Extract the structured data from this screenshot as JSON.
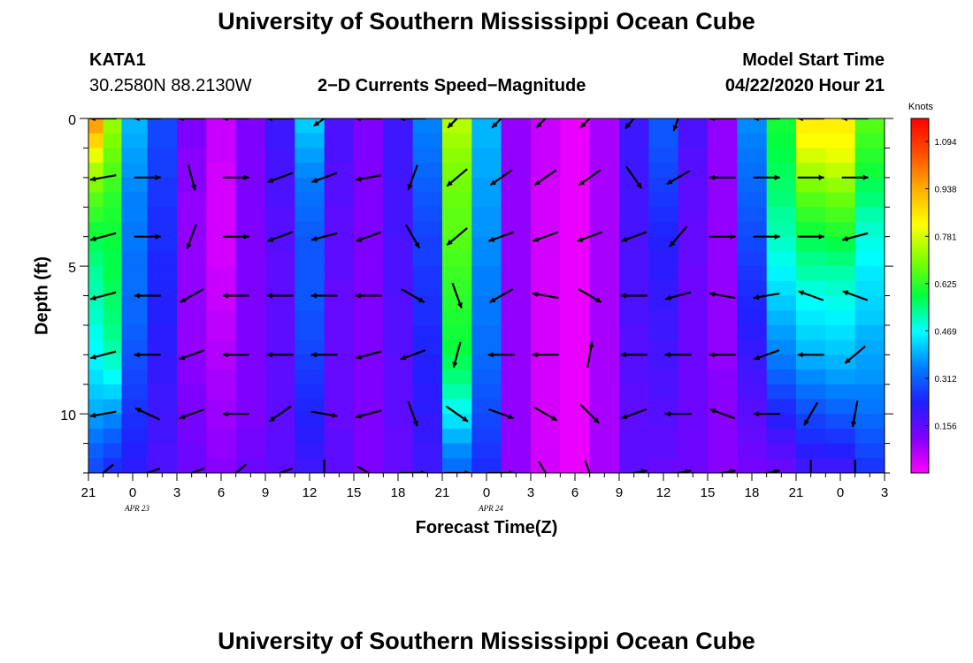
{
  "header": {
    "title": "University of Southern Mississippi Ocean Cube",
    "station": "KATA1",
    "coords": "30.2580N 88.2130W",
    "subtitle": "2−D Currents Speed−Magnitude",
    "model_label": "Model Start Time",
    "model_time": "04/22/2020 Hour 21"
  },
  "footer": {
    "title": "University of Southern Mississippi Ocean Cube"
  },
  "chart_data": {
    "type": "heatmap",
    "xlabel": "Forecast Time(Z)",
    "ylabel": "Depth (ft)",
    "x_tick_labels": [
      "21",
      "0",
      "3",
      "6",
      "9",
      "12",
      "15",
      "18",
      "21",
      "0",
      "3",
      "6",
      "9",
      "12",
      "15",
      "18",
      "21",
      "0",
      "3"
    ],
    "date_labels": [
      {
        "label": "APR  23",
        "at_tick": 1
      },
      {
        "label": "APR  24",
        "at_tick": 9
      }
    ],
    "x_range_hours": [
      0,
      54
    ],
    "y_tick_labels": [
      "0",
      "5",
      "10"
    ],
    "y_ticks": [
      0,
      5,
      10
    ],
    "ylim": [
      0,
      12
    ],
    "y_inverted": true,
    "colorbar": {
      "unit": "Knots",
      "ticks": [
        "1.094",
        "0.938",
        "0.781",
        "0.625",
        "0.469",
        "0.312",
        "0.156"
      ],
      "tick_values": [
        1.094,
        0.938,
        0.781,
        0.625,
        0.469,
        0.312,
        0.156
      ],
      "range": [
        0,
        1.17
      ],
      "colors": [
        "#ff00ff",
        "#8000ff",
        "#2020ff",
        "#0080ff",
        "#00ffff",
        "#00ff40",
        "#80ff00",
        "#ffff00",
        "#ffb000",
        "#ff5000",
        "#ff0000"
      ]
    },
    "depth_rows": [
      0.25,
      0.75,
      1.25,
      1.75,
      2.25,
      2.75,
      3.25,
      3.75,
      4.25,
      4.75,
      5.25,
      5.75,
      6.25,
      6.75,
      7.25,
      7.75,
      8.25,
      8.75,
      9.25,
      9.75,
      10.25,
      10.75,
      11.25,
      11.75
    ],
    "time_columns": [
      0.5,
      1.5,
      3,
      5,
      7,
      9,
      11,
      13,
      15,
      17,
      19,
      21,
      23,
      25,
      27,
      29,
      31,
      33,
      35,
      37,
      39,
      41,
      43,
      45,
      47,
      49,
      51,
      53
    ],
    "speed_profiles": [
      [
        0.95,
        0.88,
        0.8,
        0.74,
        0.7,
        0.66,
        0.63,
        0.6,
        0.57,
        0.55,
        0.53,
        0.52,
        0.51,
        0.5,
        0.48,
        0.47,
        0.46,
        0.44,
        0.42,
        0.4,
        0.37,
        0.34,
        0.31,
        0.29
      ],
      [
        0.72,
        0.7,
        0.68,
        0.66,
        0.64,
        0.62,
        0.61,
        0.6,
        0.59,
        0.58,
        0.58,
        0.57,
        0.56,
        0.55,
        0.54,
        0.52,
        0.5,
        0.47,
        0.43,
        0.39,
        0.35,
        0.31,
        0.28,
        0.25
      ],
      [
        0.4,
        0.39,
        0.38,
        0.37,
        0.36,
        0.35,
        0.35,
        0.34,
        0.34,
        0.33,
        0.33,
        0.33,
        0.32,
        0.32,
        0.31,
        0.3,
        0.29,
        0.28,
        0.27,
        0.26,
        0.25,
        0.24,
        0.23,
        0.22
      ],
      [
        0.28,
        0.28,
        0.27,
        0.27,
        0.26,
        0.26,
        0.25,
        0.25,
        0.25,
        0.24,
        0.24,
        0.24,
        0.23,
        0.23,
        0.22,
        0.22,
        0.21,
        0.21,
        0.2,
        0.2,
        0.19,
        0.19,
        0.18,
        0.18
      ],
      [
        0.12,
        0.12,
        0.11,
        0.11,
        0.11,
        0.1,
        0.1,
        0.1,
        0.1,
        0.1,
        0.1,
        0.1,
        0.1,
        0.1,
        0.1,
        0.1,
        0.11,
        0.11,
        0.12,
        0.12,
        0.13,
        0.13,
        0.14,
        0.14
      ],
      [
        0.05,
        0.05,
        0.05,
        0.04,
        0.04,
        0.04,
        0.04,
        0.04,
        0.04,
        0.04,
        0.05,
        0.05,
        0.05,
        0.06,
        0.06,
        0.07,
        0.07,
        0.08,
        0.08,
        0.09,
        0.09,
        0.1,
        0.1,
        0.11
      ],
      [
        0.12,
        0.12,
        0.12,
        0.12,
        0.12,
        0.12,
        0.12,
        0.12,
        0.12,
        0.12,
        0.12,
        0.12,
        0.12,
        0.12,
        0.12,
        0.12,
        0.12,
        0.12,
        0.12,
        0.12,
        0.12,
        0.13,
        0.13,
        0.14
      ],
      [
        0.2,
        0.2,
        0.19,
        0.19,
        0.18,
        0.18,
        0.17,
        0.17,
        0.17,
        0.16,
        0.16,
        0.16,
        0.16,
        0.16,
        0.16,
        0.16,
        0.16,
        0.16,
        0.16,
        0.16,
        0.16,
        0.16,
        0.16,
        0.16
      ],
      [
        0.42,
        0.4,
        0.38,
        0.36,
        0.34,
        0.33,
        0.32,
        0.31,
        0.3,
        0.3,
        0.3,
        0.3,
        0.3,
        0.29,
        0.29,
        0.28,
        0.27,
        0.26,
        0.25,
        0.24,
        0.23,
        0.22,
        0.21,
        0.2
      ],
      [
        0.18,
        0.18,
        0.18,
        0.17,
        0.17,
        0.17,
        0.16,
        0.16,
        0.16,
        0.16,
        0.16,
        0.15,
        0.15,
        0.15,
        0.15,
        0.15,
        0.15,
        0.15,
        0.15,
        0.15,
        0.15,
        0.16,
        0.16,
        0.16
      ],
      [
        0.12,
        0.12,
        0.12,
        0.12,
        0.12,
        0.12,
        0.12,
        0.12,
        0.12,
        0.12,
        0.12,
        0.12,
        0.12,
        0.12,
        0.12,
        0.12,
        0.12,
        0.12,
        0.12,
        0.12,
        0.12,
        0.12,
        0.12,
        0.12
      ],
      [
        0.2,
        0.2,
        0.2,
        0.2,
        0.19,
        0.19,
        0.19,
        0.19,
        0.18,
        0.18,
        0.18,
        0.18,
        0.17,
        0.17,
        0.17,
        0.17,
        0.16,
        0.16,
        0.16,
        0.16,
        0.16,
        0.15,
        0.15,
        0.15
      ],
      [
        0.35,
        0.34,
        0.33,
        0.32,
        0.31,
        0.3,
        0.29,
        0.28,
        0.27,
        0.27,
        0.26,
        0.26,
        0.25,
        0.25,
        0.24,
        0.24,
        0.23,
        0.23,
        0.22,
        0.22,
        0.21,
        0.21,
        0.2,
        0.2
      ],
      [
        0.75,
        0.73,
        0.71,
        0.7,
        0.69,
        0.68,
        0.67,
        0.67,
        0.66,
        0.65,
        0.64,
        0.63,
        0.62,
        0.61,
        0.6,
        0.59,
        0.57,
        0.55,
        0.52,
        0.48,
        0.44,
        0.4,
        0.36,
        0.33
      ],
      [
        0.4,
        0.4,
        0.39,
        0.39,
        0.38,
        0.38,
        0.37,
        0.37,
        0.36,
        0.36,
        0.35,
        0.35,
        0.34,
        0.34,
        0.33,
        0.33,
        0.32,
        0.31,
        0.3,
        0.29,
        0.28,
        0.27,
        0.26,
        0.25
      ],
      [
        0.1,
        0.1,
        0.1,
        0.1,
        0.1,
        0.1,
        0.1,
        0.1,
        0.1,
        0.1,
        0.1,
        0.1,
        0.1,
        0.1,
        0.1,
        0.1,
        0.1,
        0.1,
        0.1,
        0.1,
        0.1,
        0.1,
        0.1,
        0.1
      ],
      [
        0.05,
        0.05,
        0.05,
        0.05,
        0.04,
        0.04,
        0.04,
        0.04,
        0.04,
        0.04,
        0.04,
        0.04,
        0.04,
        0.04,
        0.04,
        0.04,
        0.04,
        0.04,
        0.04,
        0.04,
        0.04,
        0.04,
        0.04,
        0.04
      ],
      [
        0.02,
        0.02,
        0.02,
        0.02,
        0.02,
        0.02,
        0.02,
        0.02,
        0.02,
        0.02,
        0.02,
        0.02,
        0.02,
        0.02,
        0.02,
        0.02,
        0.02,
        0.02,
        0.02,
        0.02,
        0.02,
        0.02,
        0.02,
        0.02
      ],
      [
        0.08,
        0.08,
        0.08,
        0.08,
        0.08,
        0.08,
        0.08,
        0.08,
        0.08,
        0.08,
        0.08,
        0.08,
        0.08,
        0.08,
        0.08,
        0.08,
        0.08,
        0.08,
        0.08,
        0.08,
        0.08,
        0.08,
        0.08,
        0.08
      ],
      [
        0.2,
        0.2,
        0.2,
        0.2,
        0.19,
        0.19,
        0.19,
        0.19,
        0.18,
        0.18,
        0.18,
        0.18,
        0.18,
        0.18,
        0.17,
        0.17,
        0.17,
        0.17,
        0.16,
        0.16,
        0.16,
        0.16,
        0.16,
        0.16
      ],
      [
        0.3,
        0.3,
        0.29,
        0.28,
        0.27,
        0.26,
        0.25,
        0.24,
        0.23,
        0.22,
        0.22,
        0.21,
        0.21,
        0.2,
        0.2,
        0.19,
        0.19,
        0.18,
        0.18,
        0.17,
        0.17,
        0.16,
        0.16,
        0.15
      ],
      [
        0.18,
        0.18,
        0.17,
        0.17,
        0.16,
        0.16,
        0.16,
        0.15,
        0.15,
        0.15,
        0.14,
        0.14,
        0.14,
        0.14,
        0.14,
        0.14,
        0.14,
        0.14,
        0.14,
        0.14,
        0.14,
        0.14,
        0.14,
        0.14
      ],
      [
        0.1,
        0.1,
        0.1,
        0.1,
        0.1,
        0.1,
        0.1,
        0.1,
        0.1,
        0.1,
        0.1,
        0.1,
        0.1,
        0.1,
        0.1,
        0.1,
        0.1,
        0.11,
        0.11,
        0.11,
        0.11,
        0.11,
        0.11,
        0.11
      ],
      [
        0.36,
        0.35,
        0.34,
        0.33,
        0.32,
        0.31,
        0.3,
        0.29,
        0.28,
        0.27,
        0.26,
        0.25,
        0.24,
        0.23,
        0.22,
        0.21,
        0.2,
        0.19,
        0.18,
        0.17,
        0.16,
        0.15,
        0.14,
        0.13
      ],
      [
        0.6,
        0.59,
        0.58,
        0.57,
        0.56,
        0.55,
        0.53,
        0.52,
        0.5,
        0.48,
        0.46,
        0.44,
        0.42,
        0.4,
        0.38,
        0.36,
        0.34,
        0.31,
        0.28,
        0.25,
        0.22,
        0.19,
        0.17,
        0.15
      ],
      [
        0.84,
        0.82,
        0.78,
        0.74,
        0.7,
        0.66,
        0.63,
        0.6,
        0.57,
        0.54,
        0.52,
        0.49,
        0.47,
        0.45,
        0.43,
        0.41,
        0.39,
        0.36,
        0.33,
        0.3,
        0.27,
        0.25,
        0.22,
        0.2
      ],
      [
        0.84,
        0.82,
        0.8,
        0.76,
        0.72,
        0.68,
        0.65,
        0.62,
        0.58,
        0.55,
        0.52,
        0.5,
        0.48,
        0.46,
        0.44,
        0.42,
        0.4,
        0.38,
        0.35,
        0.32,
        0.29,
        0.26,
        0.23,
        0.2
      ],
      [
        0.66,
        0.64,
        0.62,
        0.6,
        0.57,
        0.55,
        0.52,
        0.5,
        0.48,
        0.47,
        0.45,
        0.44,
        0.43,
        0.42,
        0.4,
        0.39,
        0.38,
        0.37,
        0.35,
        0.34,
        0.32,
        0.3,
        0.28,
        0.26
      ]
    ],
    "vectors": {
      "depths": [
        0,
        2,
        4,
        6,
        8,
        10,
        12
      ],
      "times": [
        1,
        4,
        7,
        10,
        13,
        16,
        19,
        22,
        25,
        28,
        31,
        34,
        37,
        40,
        43,
        46,
        49,
        52
      ],
      "angles_deg": [
        [
          180,
          180,
          180,
          180,
          180,
          215,
          180,
          180,
          225,
          225,
          225,
          225,
          230,
          250,
          180,
          180,
          180,
          180
        ],
        [
          190,
          0,
          285,
          0,
          200,
          200,
          190,
          250,
          220,
          215,
          215,
          215,
          305,
          210,
          180,
          0,
          0,
          0
        ],
        [
          195,
          0,
          250,
          0,
          200,
          195,
          200,
          300,
          220,
          200,
          200,
          200,
          200,
          230,
          0,
          0,
          0,
          195
        ],
        [
          195,
          180,
          210,
          180,
          180,
          180,
          180,
          330,
          290,
          210,
          170,
          330,
          180,
          195,
          170,
          190,
          160,
          160
        ],
        [
          195,
          180,
          200,
          180,
          180,
          180,
          195,
          200,
          255,
          180,
          180,
          80,
          180,
          180,
          180,
          200,
          180,
          220
        ],
        [
          190,
          155,
          200,
          180,
          215,
          350,
          195,
          290,
          325,
          340,
          330,
          315,
          200,
          180,
          160,
          180,
          240,
          260
        ],
        [
          220,
          200,
          200,
          220,
          200,
          270,
          330,
          0,
          0,
          0,
          300,
          290,
          10,
          10,
          10,
          10,
          270,
          270
        ]
      ]
    }
  }
}
